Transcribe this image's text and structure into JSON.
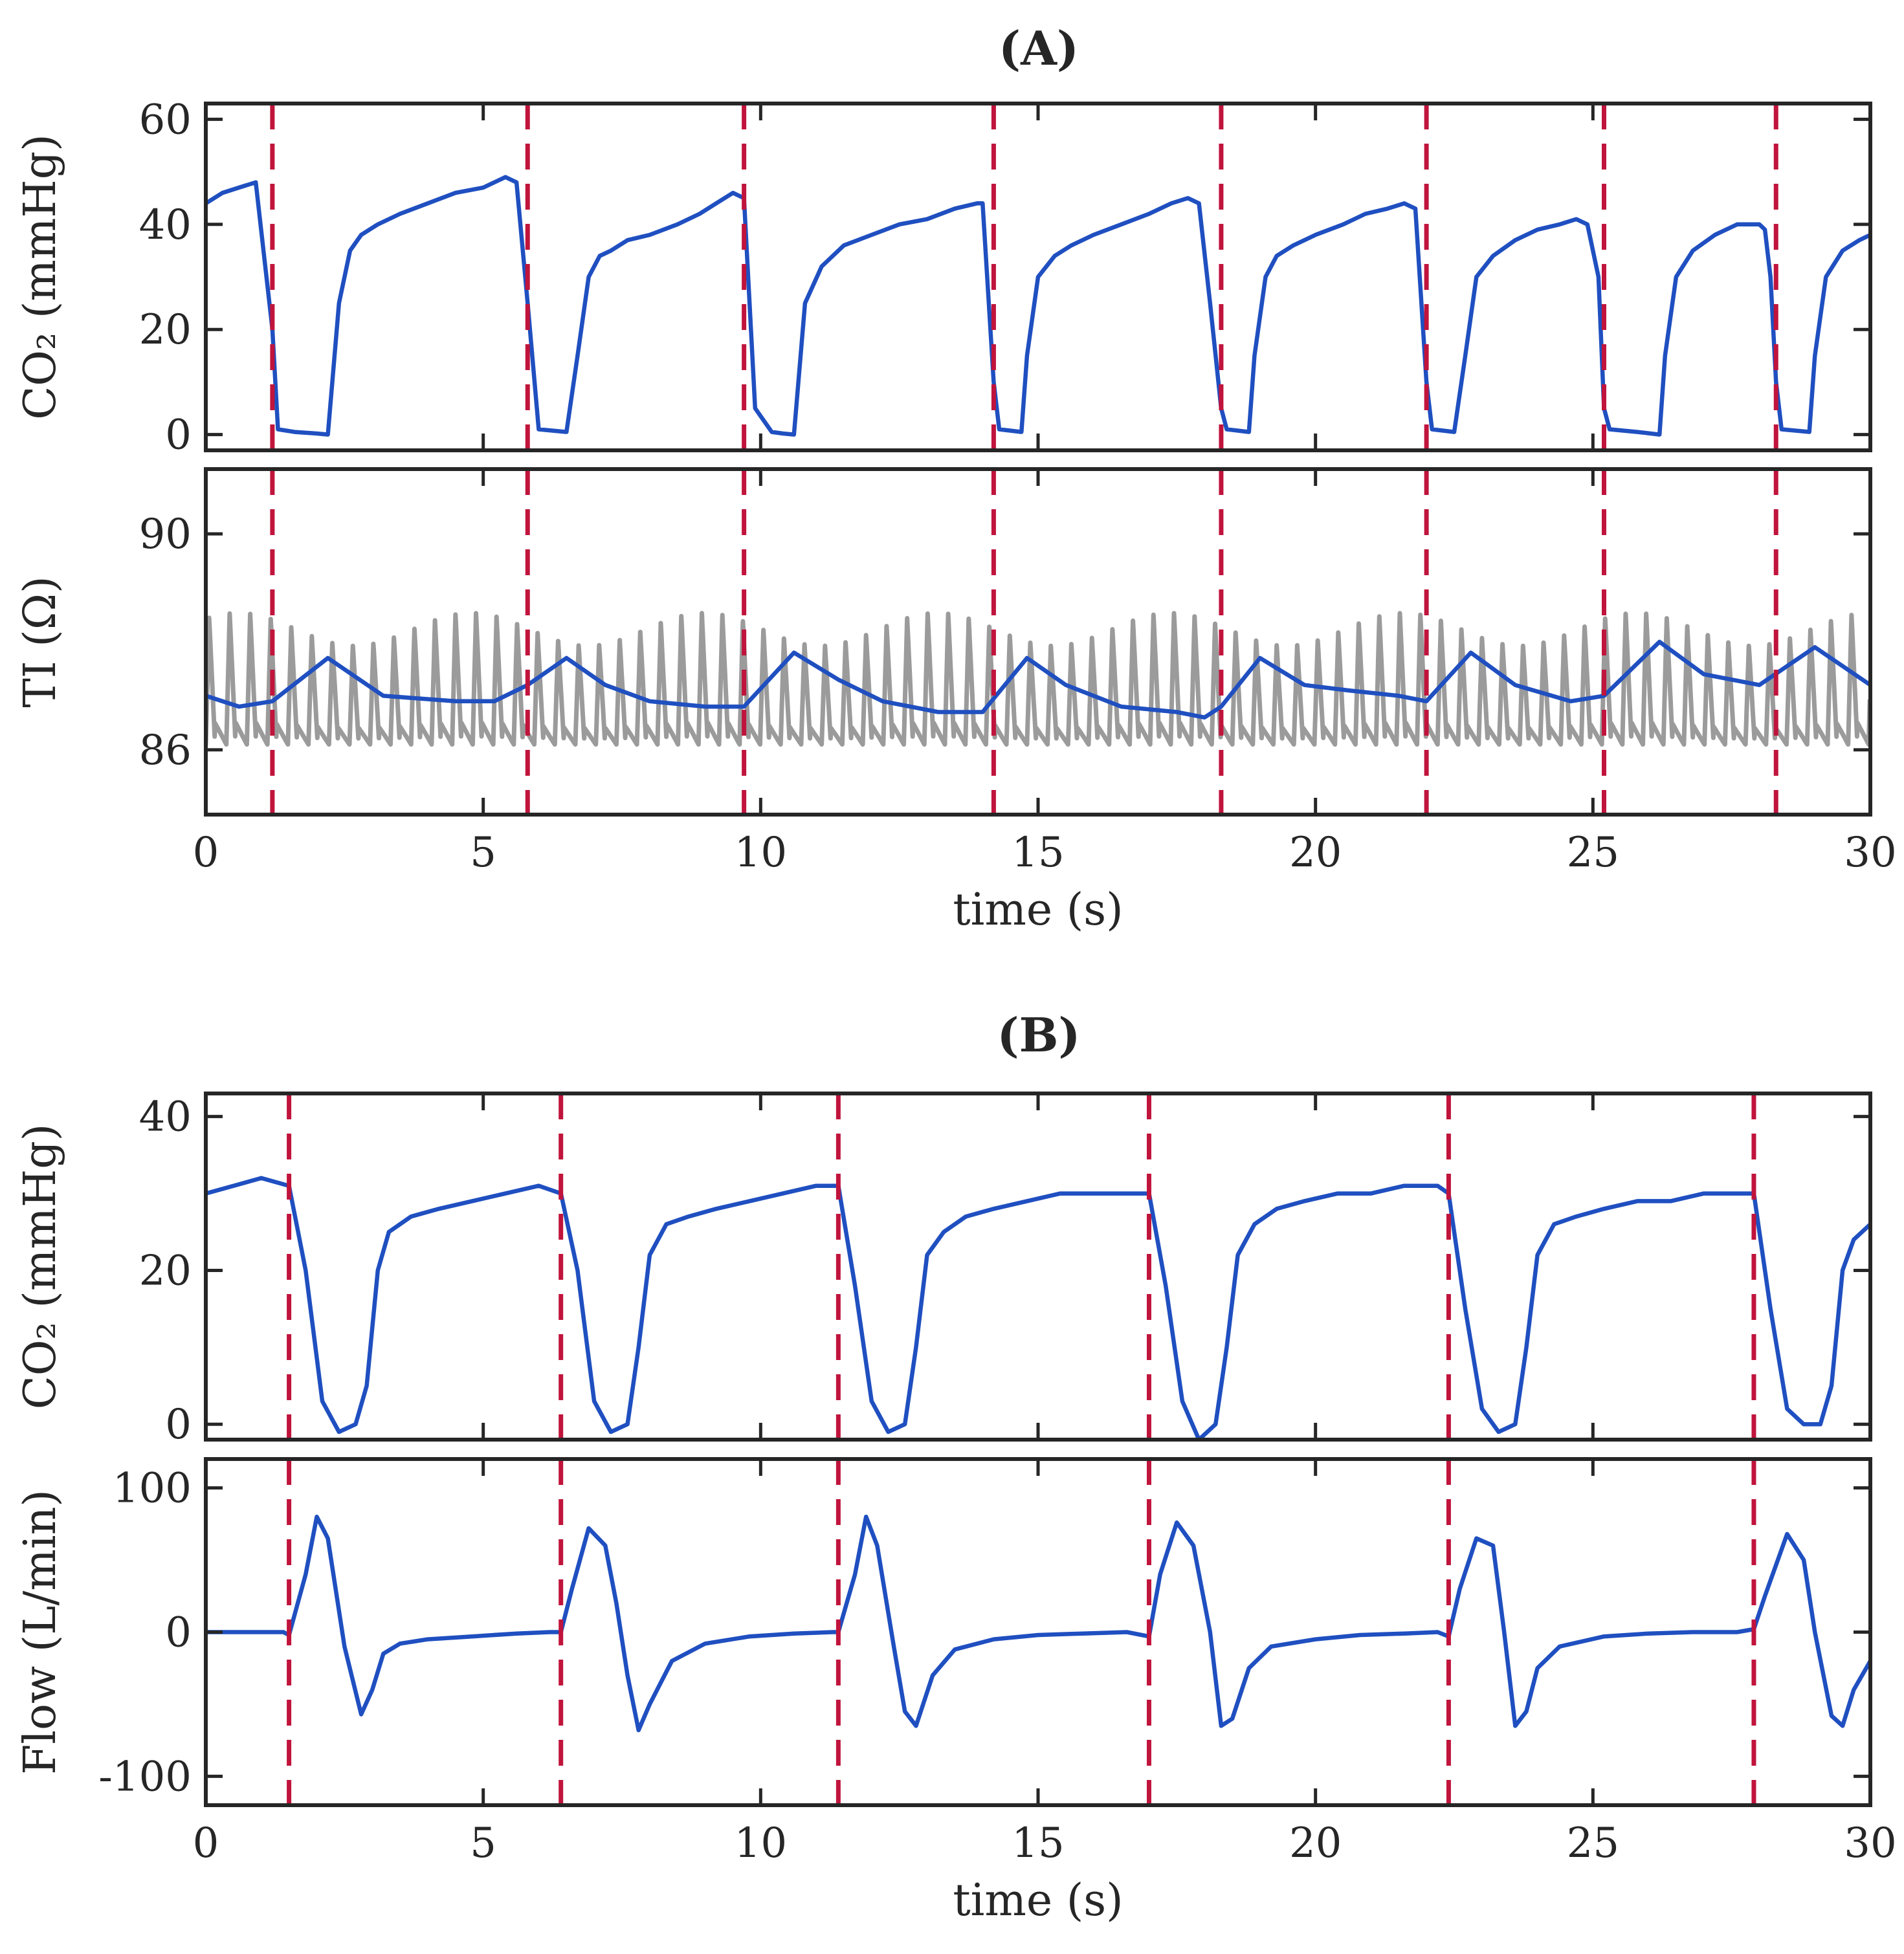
{
  "chart_data": [
    {
      "type": "line",
      "panel": "A",
      "title": "(A)",
      "subplots": [
        {
          "ylabel": "CO₂ (mmHg)",
          "ylim": [
            -3,
            63
          ],
          "yticks": [
            0,
            20,
            40,
            60
          ],
          "xlim": [
            0,
            30
          ],
          "show_xticklabels": false,
          "event_lines": [
            1.2,
            5.8,
            9.7,
            14.2,
            18.3,
            22.0,
            25.2,
            28.3
          ],
          "series": [
            {
              "name": "",
              "color": "#1f4fc0",
              "x": [
                0,
                0.3,
                0.6,
                0.9,
                1.2,
                1.3,
                1.6,
                2.0,
                2.2,
                2.4,
                2.6,
                2.8,
                3.1,
                3.5,
                4.0,
                4.5,
                5.0,
                5.4,
                5.6,
                5.8,
                6.0,
                6.5,
                6.7,
                6.9,
                7.1,
                7.3,
                7.6,
                8.0,
                8.5,
                8.9,
                9.2,
                9.5,
                9.7,
                9.9,
                10.2,
                10.4,
                10.6,
                10.8,
                11.1,
                11.5,
                12.0,
                12.5,
                13.0,
                13.5,
                13.9,
                14.0,
                14.2,
                14.3,
                14.7,
                14.8,
                15.0,
                15.3,
                15.6,
                16.0,
                16.5,
                17.0,
                17.4,
                17.7,
                17.9,
                18.1,
                18.3,
                18.4,
                18.8,
                18.9,
                19.1,
                19.3,
                19.6,
                20.0,
                20.5,
                20.9,
                21.3,
                21.6,
                21.8,
                22.0,
                22.1,
                22.5,
                22.7,
                22.9,
                23.2,
                23.6,
                24.0,
                24.4,
                24.7,
                24.9,
                25.1,
                25.2,
                25.3,
                25.8,
                26.2,
                26.3,
                26.5,
                26.8,
                27.2,
                27.6,
                28.0,
                28.1,
                28.2,
                28.3,
                28.4,
                28.9,
                29.0,
                29.2,
                29.5,
                29.8,
                30.0
              ],
              "y": [
                44,
                46,
                47,
                48,
                20,
                1,
                0.5,
                0.2,
                0,
                25,
                35,
                38,
                40,
                42,
                44,
                46,
                47,
                49,
                48,
                25,
                1,
                0.5,
                15,
                30,
                34,
                35,
                37,
                38,
                40,
                42,
                44,
                46,
                45,
                5,
                0.5,
                0.2,
                0,
                25,
                32,
                36,
                38,
                40,
                41,
                43,
                44,
                44,
                10,
                1,
                0.5,
                15,
                30,
                34,
                36,
                38,
                40,
                42,
                44,
                45,
                44,
                25,
                5,
                1,
                0.5,
                15,
                30,
                34,
                36,
                38,
                40,
                42,
                43,
                44,
                43,
                10,
                1,
                0.5,
                15,
                30,
                34,
                37,
                39,
                40,
                41,
                40,
                30,
                5,
                1,
                0.5,
                0,
                15,
                30,
                35,
                38,
                40,
                40,
                39,
                30,
                10,
                1,
                0.5,
                15,
                30,
                35,
                37,
                38
              ]
            }
          ]
        },
        {
          "ylabel": "TI (Ω)",
          "ylim": [
            84.8,
            91.2
          ],
          "yticks": [
            86,
            90
          ],
          "xlim": [
            0,
            30
          ],
          "xticks": [
            0,
            5,
            10,
            15,
            20,
            25,
            30
          ],
          "xlabel": "time (s)",
          "event_lines": [
            1.2,
            5.8,
            9.7,
            14.2,
            18.3,
            22.0,
            25.2,
            28.3
          ],
          "series": [
            {
              "name": "",
              "color": "#9b9b9b",
              "kind": "cardiac oscillation",
              "beat_period_s": 0.37,
              "trough_approx": 86.1,
              "peak_approx": 88.8
            },
            {
              "name": "",
              "color": "#1f4fc0",
              "x": [
                0,
                0.6,
                1.2,
                2.2,
                3.2,
                4.5,
                5.2,
                5.8,
                6.5,
                7.2,
                8.0,
                9.0,
                9.7,
                10.6,
                11.4,
                12.2,
                13.2,
                14.0,
                14.8,
                15.5,
                16.5,
                17.5,
                18.0,
                18.3,
                19.0,
                19.8,
                20.6,
                21.5,
                22.0,
                22.8,
                23.6,
                24.6,
                25.2,
                26.2,
                27.0,
                28.0,
                29.0,
                30.0
              ],
              "y": [
                87.0,
                86.8,
                86.9,
                87.7,
                87.0,
                86.9,
                86.9,
                87.2,
                87.7,
                87.2,
                86.9,
                86.8,
                86.8,
                87.8,
                87.3,
                86.9,
                86.7,
                86.7,
                87.7,
                87.2,
                86.8,
                86.7,
                86.6,
                86.8,
                87.7,
                87.2,
                87.1,
                87.0,
                86.9,
                87.8,
                87.2,
                86.9,
                87.0,
                88.0,
                87.4,
                87.2,
                87.9,
                87.2
              ]
            }
          ]
        }
      ]
    },
    {
      "type": "line",
      "panel": "B",
      "title": "(B)",
      "subplots": [
        {
          "ylabel": "CO₂ (mmHg)",
          "ylim": [
            -2,
            43
          ],
          "yticks": [
            0,
            20,
            40
          ],
          "xlim": [
            0,
            30
          ],
          "show_xticklabels": false,
          "event_lines": [
            1.5,
            6.4,
            11.4,
            17.0,
            22.4,
            27.9
          ],
          "series": [
            {
              "name": "",
              "color": "#1f4fc0",
              "x": [
                0,
                0.5,
                1.0,
                1.5,
                1.8,
                2.1,
                2.4,
                2.7,
                2.9,
                3.1,
                3.3,
                3.7,
                4.2,
                4.8,
                5.4,
                6.0,
                6.4,
                6.7,
                7.0,
                7.3,
                7.6,
                7.8,
                8.0,
                8.3,
                8.7,
                9.2,
                9.8,
                10.4,
                11.0,
                11.4,
                11.7,
                12.0,
                12.3,
                12.6,
                12.8,
                13.0,
                13.3,
                13.7,
                14.2,
                14.8,
                15.4,
                16.0,
                16.6,
                17.0,
                17.3,
                17.6,
                17.9,
                18.2,
                18.4,
                18.6,
                18.9,
                19.3,
                19.8,
                20.4,
                21.0,
                21.6,
                22.2,
                22.4,
                22.7,
                23.0,
                23.3,
                23.6,
                23.8,
                24.0,
                24.3,
                24.7,
                25.2,
                25.8,
                26.4,
                27.0,
                27.6,
                27.9,
                28.2,
                28.5,
                28.8,
                29.1,
                29.3,
                29.5,
                29.7,
                30.0
              ],
              "y": [
                30,
                31,
                32,
                31,
                20,
                3,
                -1,
                0,
                5,
                20,
                25,
                27,
                28,
                29,
                30,
                31,
                30,
                20,
                3,
                -1,
                0,
                10,
                22,
                26,
                27,
                28,
                29,
                30,
                31,
                31,
                18,
                3,
                -1,
                0,
                10,
                22,
                25,
                27,
                28,
                29,
                30,
                30,
                30,
                30,
                18,
                3,
                -2,
                0,
                10,
                22,
                26,
                28,
                29,
                30,
                30,
                31,
                31,
                30,
                15,
                2,
                -1,
                0,
                10,
                22,
                26,
                27,
                28,
                29,
                29,
                30,
                30,
                30,
                15,
                2,
                0,
                0,
                5,
                20,
                24,
                26
              ]
            }
          ]
        },
        {
          "ylabel": "Flow (L/min)",
          "ylim": [
            -120,
            120
          ],
          "yticks": [
            -100,
            0,
            100
          ],
          "xlim": [
            0,
            30
          ],
          "xticks": [
            0,
            5,
            10,
            15,
            20,
            25,
            30
          ],
          "xlabel": "time (s)",
          "event_lines": [
            1.5,
            6.4,
            11.4,
            17.0,
            22.4,
            27.9
          ],
          "series": [
            {
              "name": "",
              "color": "#1f4fc0",
              "x": [
                0,
                0.8,
                1.4,
                1.5,
                1.8,
                2.0,
                2.2,
                2.5,
                2.8,
                3.0,
                3.2,
                3.5,
                4.0,
                4.8,
                5.6,
                6.2,
                6.4,
                6.6,
                6.9,
                7.2,
                7.4,
                7.6,
                7.8,
                8.0,
                8.4,
                9.0,
                9.8,
                10.6,
                11.3,
                11.4,
                11.7,
                11.9,
                12.1,
                12.4,
                12.6,
                12.8,
                13.1,
                13.5,
                14.2,
                15.0,
                15.8,
                16.6,
                17.0,
                17.2,
                17.5,
                17.8,
                18.1,
                18.3,
                18.5,
                18.8,
                19.2,
                20.0,
                20.8,
                21.6,
                22.2,
                22.4,
                22.6,
                22.9,
                23.2,
                23.4,
                23.6,
                23.8,
                24.0,
                24.4,
                25.2,
                26.0,
                26.8,
                27.6,
                27.9,
                28.1,
                28.5,
                28.8,
                29.0,
                29.3,
                29.5,
                29.7,
                30.0
              ],
              "y": [
                0,
                0,
                0,
                -2,
                40,
                80,
                65,
                -10,
                -57,
                -40,
                -15,
                -8,
                -5,
                -3,
                -1,
                0,
                0,
                30,
                72,
                60,
                20,
                -30,
                -68,
                -50,
                -20,
                -8,
                -3,
                -1,
                0,
                0,
                40,
                80,
                60,
                -10,
                -55,
                -65,
                -30,
                -12,
                -5,
                -2,
                -1,
                0,
                -3,
                40,
                76,
                60,
                0,
                -65,
                -60,
                -25,
                -10,
                -5,
                -2,
                -1,
                0,
                -3,
                30,
                65,
                60,
                0,
                -65,
                -55,
                -25,
                -10,
                -3,
                -1,
                0,
                0,
                2,
                25,
                68,
                50,
                0,
                -58,
                -65,
                -40,
                -20
              ]
            }
          ]
        }
      ]
    }
  ]
}
